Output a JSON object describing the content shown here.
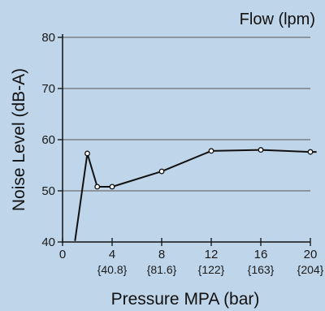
{
  "chart_data": {
    "type": "line",
    "title": "Flow (lpm)",
    "xlabel": "Pressure MPA (bar)",
    "ylabel": "Noise Level (dB-A)",
    "xlim": [
      0,
      20
    ],
    "ylim": [
      40,
      80
    ],
    "x_ticks": [
      {
        "value": 0,
        "label": "0",
        "sub": ""
      },
      {
        "value": 4,
        "label": "4",
        "sub": "{40.8}"
      },
      {
        "value": 8,
        "label": "8",
        "sub": "{81.6}"
      },
      {
        "value": 12,
        "label": "12",
        "sub": "{122}"
      },
      {
        "value": 16,
        "label": "16",
        "sub": "{163}"
      },
      {
        "value": 20,
        "label": "20",
        "sub": "{204}"
      }
    ],
    "y_ticks": [
      {
        "value": 40,
        "label": "40"
      },
      {
        "value": 50,
        "label": "50"
      },
      {
        "value": 60,
        "label": "60"
      },
      {
        "value": 70,
        "label": "70"
      },
      {
        "value": 80,
        "label": "80"
      }
    ],
    "grid": "horizontal",
    "line_color": "#111111",
    "marker_fill": "#ffffff",
    "series": [
      {
        "x": [
          1.0,
          2.0,
          2.8,
          4.0,
          8.0,
          12.0,
          16.0,
          20.0,
          20.5
        ],
        "y": [
          40.2,
          57.3,
          50.8,
          50.8,
          53.8,
          57.8,
          58.0,
          57.6,
          57.6
        ],
        "markers": [
          false,
          true,
          true,
          true,
          true,
          true,
          true,
          true,
          false
        ]
      }
    ]
  }
}
